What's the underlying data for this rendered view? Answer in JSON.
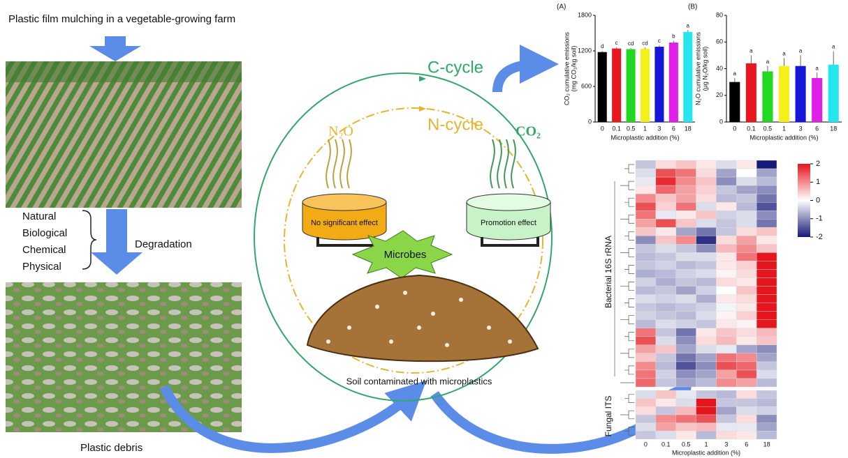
{
  "left": {
    "title": "Plastic film mulching in a vegetable-growing farm",
    "factors": [
      "Natural",
      "Biological",
      "Chemical",
      "Physical"
    ],
    "process": "Degradation",
    "caption": "Plastic debris"
  },
  "center": {
    "c_cycle": "C-cycle",
    "n_cycle": "N-cycle",
    "n2o": "N₂O",
    "co2": "CO₂",
    "no_effect": "No significant effect",
    "promotion": "Promotion effect",
    "microbes": "Microbes",
    "soil": "Soil contaminated with microplastics"
  },
  "charts": [
    {
      "type": "bar",
      "panel": "(A)",
      "ylabel": "CO₂ cumulative emissions",
      "ylabel2": "(mg CO₂/kg soil)",
      "xlabel": "Microplastic addition (%)",
      "categories": [
        "0",
        "0.1",
        "0.5",
        "1",
        "3",
        "6",
        "18"
      ],
      "values": [
        1180,
        1240,
        1230,
        1235,
        1270,
        1340,
        1520
      ],
      "errors": [
        20,
        20,
        20,
        20,
        25,
        30,
        30
      ],
      "letters": [
        "d",
        "c",
        "cd",
        "cd",
        "c",
        "b",
        "a"
      ],
      "colors": [
        "#000000",
        "#e8171f",
        "#22d822",
        "#f5f01a",
        "#1616d8",
        "#e020e8",
        "#25e5ee"
      ],
      "ylim": [
        0,
        1800
      ],
      "yticks": [
        0,
        600,
        1200,
        1800
      ]
    },
    {
      "type": "bar",
      "panel": "(B)",
      "ylabel": "N₂O cumulative emissions",
      "ylabel2": "(μg N₂O/kg soil)",
      "xlabel": "Microplastic addition (%)",
      "categories": [
        "0",
        "0.1",
        "0.5",
        "1",
        "3",
        "6",
        "18"
      ],
      "values": [
        30,
        44,
        38,
        42,
        42,
        33,
        43
      ],
      "errors": [
        3,
        6,
        4,
        6,
        8,
        4,
        10
      ],
      "letters": [
        "a",
        "a",
        "a",
        "a",
        "a",
        "a",
        "a"
      ],
      "colors": [
        "#000000",
        "#e8171f",
        "#22d822",
        "#f5f01a",
        "#1616d8",
        "#e020e8",
        "#25e5ee"
      ],
      "ylim": [
        0,
        80
      ],
      "yticks": [
        0,
        20,
        40,
        60,
        80
      ]
    }
  ],
  "heatmap": {
    "bacterial_label": "Bacterial 16S rRNA",
    "fungal_label": "Fungal ITS",
    "xlabel": "Microplastic addition (%)",
    "categories": [
      "0",
      "0.1",
      "0.5",
      "1",
      "3",
      "6",
      "18"
    ],
    "clim": [
      -2,
      2
    ],
    "cticks": [
      2,
      1,
      0,
      -1,
      -2
    ],
    "bacterial": [
      [
        -0.5,
        0.3,
        0.5,
        0.2,
        -0.3,
        0.2,
        -2
      ],
      [
        -0.3,
        1.5,
        1.2,
        0.3,
        -0.8,
        0.0,
        -0.8
      ],
      [
        -0.2,
        1.8,
        1.0,
        0.5,
        -1.0,
        -0.3,
        -0.6
      ],
      [
        0.2,
        1.3,
        0.8,
        0.4,
        -0.5,
        -0.8,
        -1.0
      ],
      [
        1.0,
        0.5,
        0.8,
        0.3,
        -0.6,
        -0.5,
        -1.2
      ],
      [
        1.5,
        0.4,
        1.2,
        -0.3,
        0.2,
        -0.6,
        -1.5
      ],
      [
        1.2,
        -0.2,
        0.2,
        0.5,
        -0.4,
        -0.3,
        -1.0
      ],
      [
        0.8,
        1.5,
        0.5,
        -0.3,
        -0.5,
        -0.3,
        -1.2
      ],
      [
        0.5,
        0.2,
        -0.8,
        -1.2,
        -0.5,
        0.3,
        0.5
      ],
      [
        -1.0,
        0.5,
        1.0,
        -1.8,
        0.3,
        0.8,
        0.2
      ],
      [
        -0.5,
        -0.3,
        -0.5,
        -1.0,
        0.6,
        1.0,
        0.5
      ],
      [
        -0.6,
        -0.5,
        -0.3,
        -0.3,
        0.2,
        1.2,
        2
      ],
      [
        -0.5,
        -0.4,
        -0.6,
        -0.5,
        0.2,
        0.4,
        2
      ],
      [
        -0.7,
        -0.6,
        -0.4,
        -0.3,
        0.1,
        0.3,
        2
      ],
      [
        -0.4,
        -0.7,
        -0.5,
        -0.6,
        0.3,
        0.2,
        2
      ],
      [
        -0.6,
        -0.5,
        -0.8,
        -0.4,
        0.0,
        0.5,
        2
      ],
      [
        -0.3,
        -0.4,
        -0.3,
        -0.7,
        0.2,
        0.3,
        2
      ],
      [
        -0.5,
        -0.6,
        -0.5,
        -0.4,
        -0.1,
        0.2,
        2
      ],
      [
        -0.4,
        -0.5,
        -0.6,
        -0.3,
        0.1,
        0.4,
        2
      ],
      [
        -0.6,
        -0.3,
        -0.4,
        -0.5,
        0.2,
        0.1,
        2
      ],
      [
        1.2,
        -0.5,
        -1.2,
        0.2,
        0.5,
        0.3,
        0.6
      ],
      [
        1.5,
        -0.3,
        -1.0,
        0.3,
        0.6,
        0.2,
        0.5
      ],
      [
        0.8,
        0.5,
        -0.8,
        -0.3,
        -0.2,
        -0.8,
        -1.0
      ],
      [
        0.5,
        -0.5,
        -1.2,
        -0.8,
        1.2,
        1.0,
        -0.8
      ],
      [
        1.0,
        -0.6,
        -1.5,
        -1.0,
        1.5,
        1.3,
        -0.5
      ],
      [
        1.2,
        -0.4,
        -1.0,
        -0.8,
        0.8,
        1.5,
        -0.3
      ],
      [
        1.3,
        -0.5,
        -0.8,
        -0.6,
        1.0,
        0.8,
        -0.6
      ]
    ],
    "fungal": [
      [
        -0.3,
        0.5,
        -0.2,
        -0.5,
        -0.6,
        0.3,
        -0.5
      ],
      [
        0.5,
        0.2,
        -0.3,
        2,
        -0.5,
        -0.5,
        -0.6
      ],
      [
        0.3,
        -0.5,
        0.6,
        2,
        -0.8,
        -0.3,
        -0.4
      ],
      [
        -0.5,
        1.0,
        1.2,
        1.5,
        -0.5,
        0.3,
        -1.0
      ],
      [
        -0.3,
        0.8,
        0.5,
        0.6,
        -0.2,
        -0.2,
        -0.8
      ],
      [
        -0.5,
        -0.3,
        0.2,
        -0.6,
        0.3,
        0.2,
        -0.6
      ]
    ]
  }
}
